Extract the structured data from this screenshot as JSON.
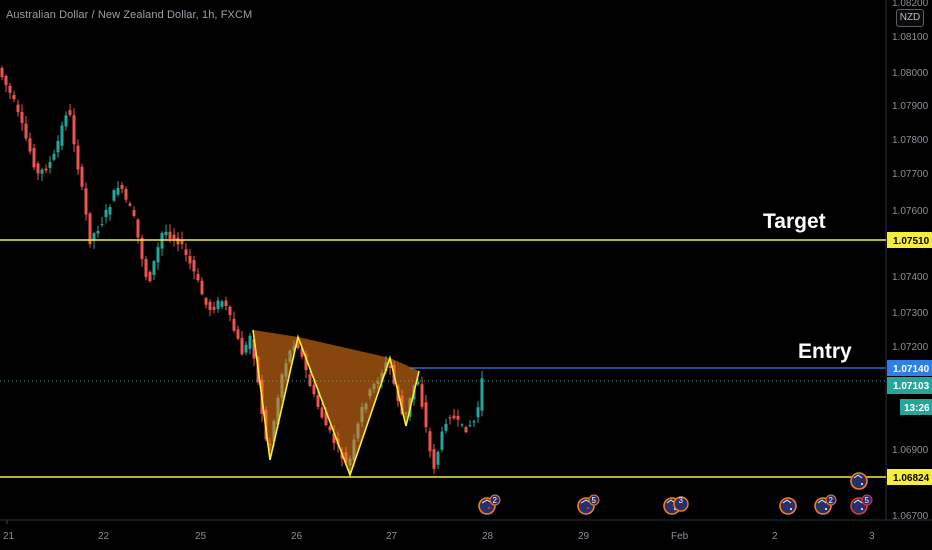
{
  "chart_title": "Australian Dollar / New Zealand Dollar, 1h, FXCM",
  "currency_button": "NZD",
  "price_scale": {
    "labels": [
      "1.08100",
      "1.08000",
      "1.07900",
      "1.07800",
      "1.07700",
      "1.07600",
      "1.07400",
      "1.07300",
      "1.07200",
      "1.06900"
    ],
    "partial_labels": [
      "1.08200",
      "1.06700"
    ]
  },
  "time_scale": {
    "labels": [
      "21",
      "22",
      "25",
      "26",
      "27",
      "28",
      "29",
      "Feb",
      "2",
      "3"
    ]
  },
  "annotations": {
    "target_label": "Target",
    "entry_label": "Entry"
  },
  "price_tags": {
    "target": "1.07510",
    "entry": "1.07140",
    "current": "1.07103",
    "countdown": "13:26",
    "support": "1.06824"
  },
  "colors": {
    "background": "#000000",
    "target_line": "#f5ee3b",
    "support_line": "#f5ee3b",
    "entry_line": "#2f7fe8",
    "entry_tag": "#2f7fe8",
    "current_tag": "#26a69a",
    "candle_up": "#26a69a",
    "candle_down": "#ef5350",
    "pattern_line": "#f5ee3b",
    "pattern_fill": "#f57f17"
  },
  "events": [
    {
      "icon": "nz-flag-icon",
      "count": "2"
    },
    {
      "icon": "nz-flag-icon",
      "count": "5"
    },
    {
      "icon": "au-flag-icon",
      "count": "3"
    },
    {
      "icon": "au-flag-icon",
      "count": ""
    },
    {
      "icon": "au-flag-icon",
      "count": "2"
    },
    {
      "icon": "au-flag-icon",
      "count": "5"
    },
    {
      "icon": "au-flag-icon",
      "count": ""
    }
  ]
}
